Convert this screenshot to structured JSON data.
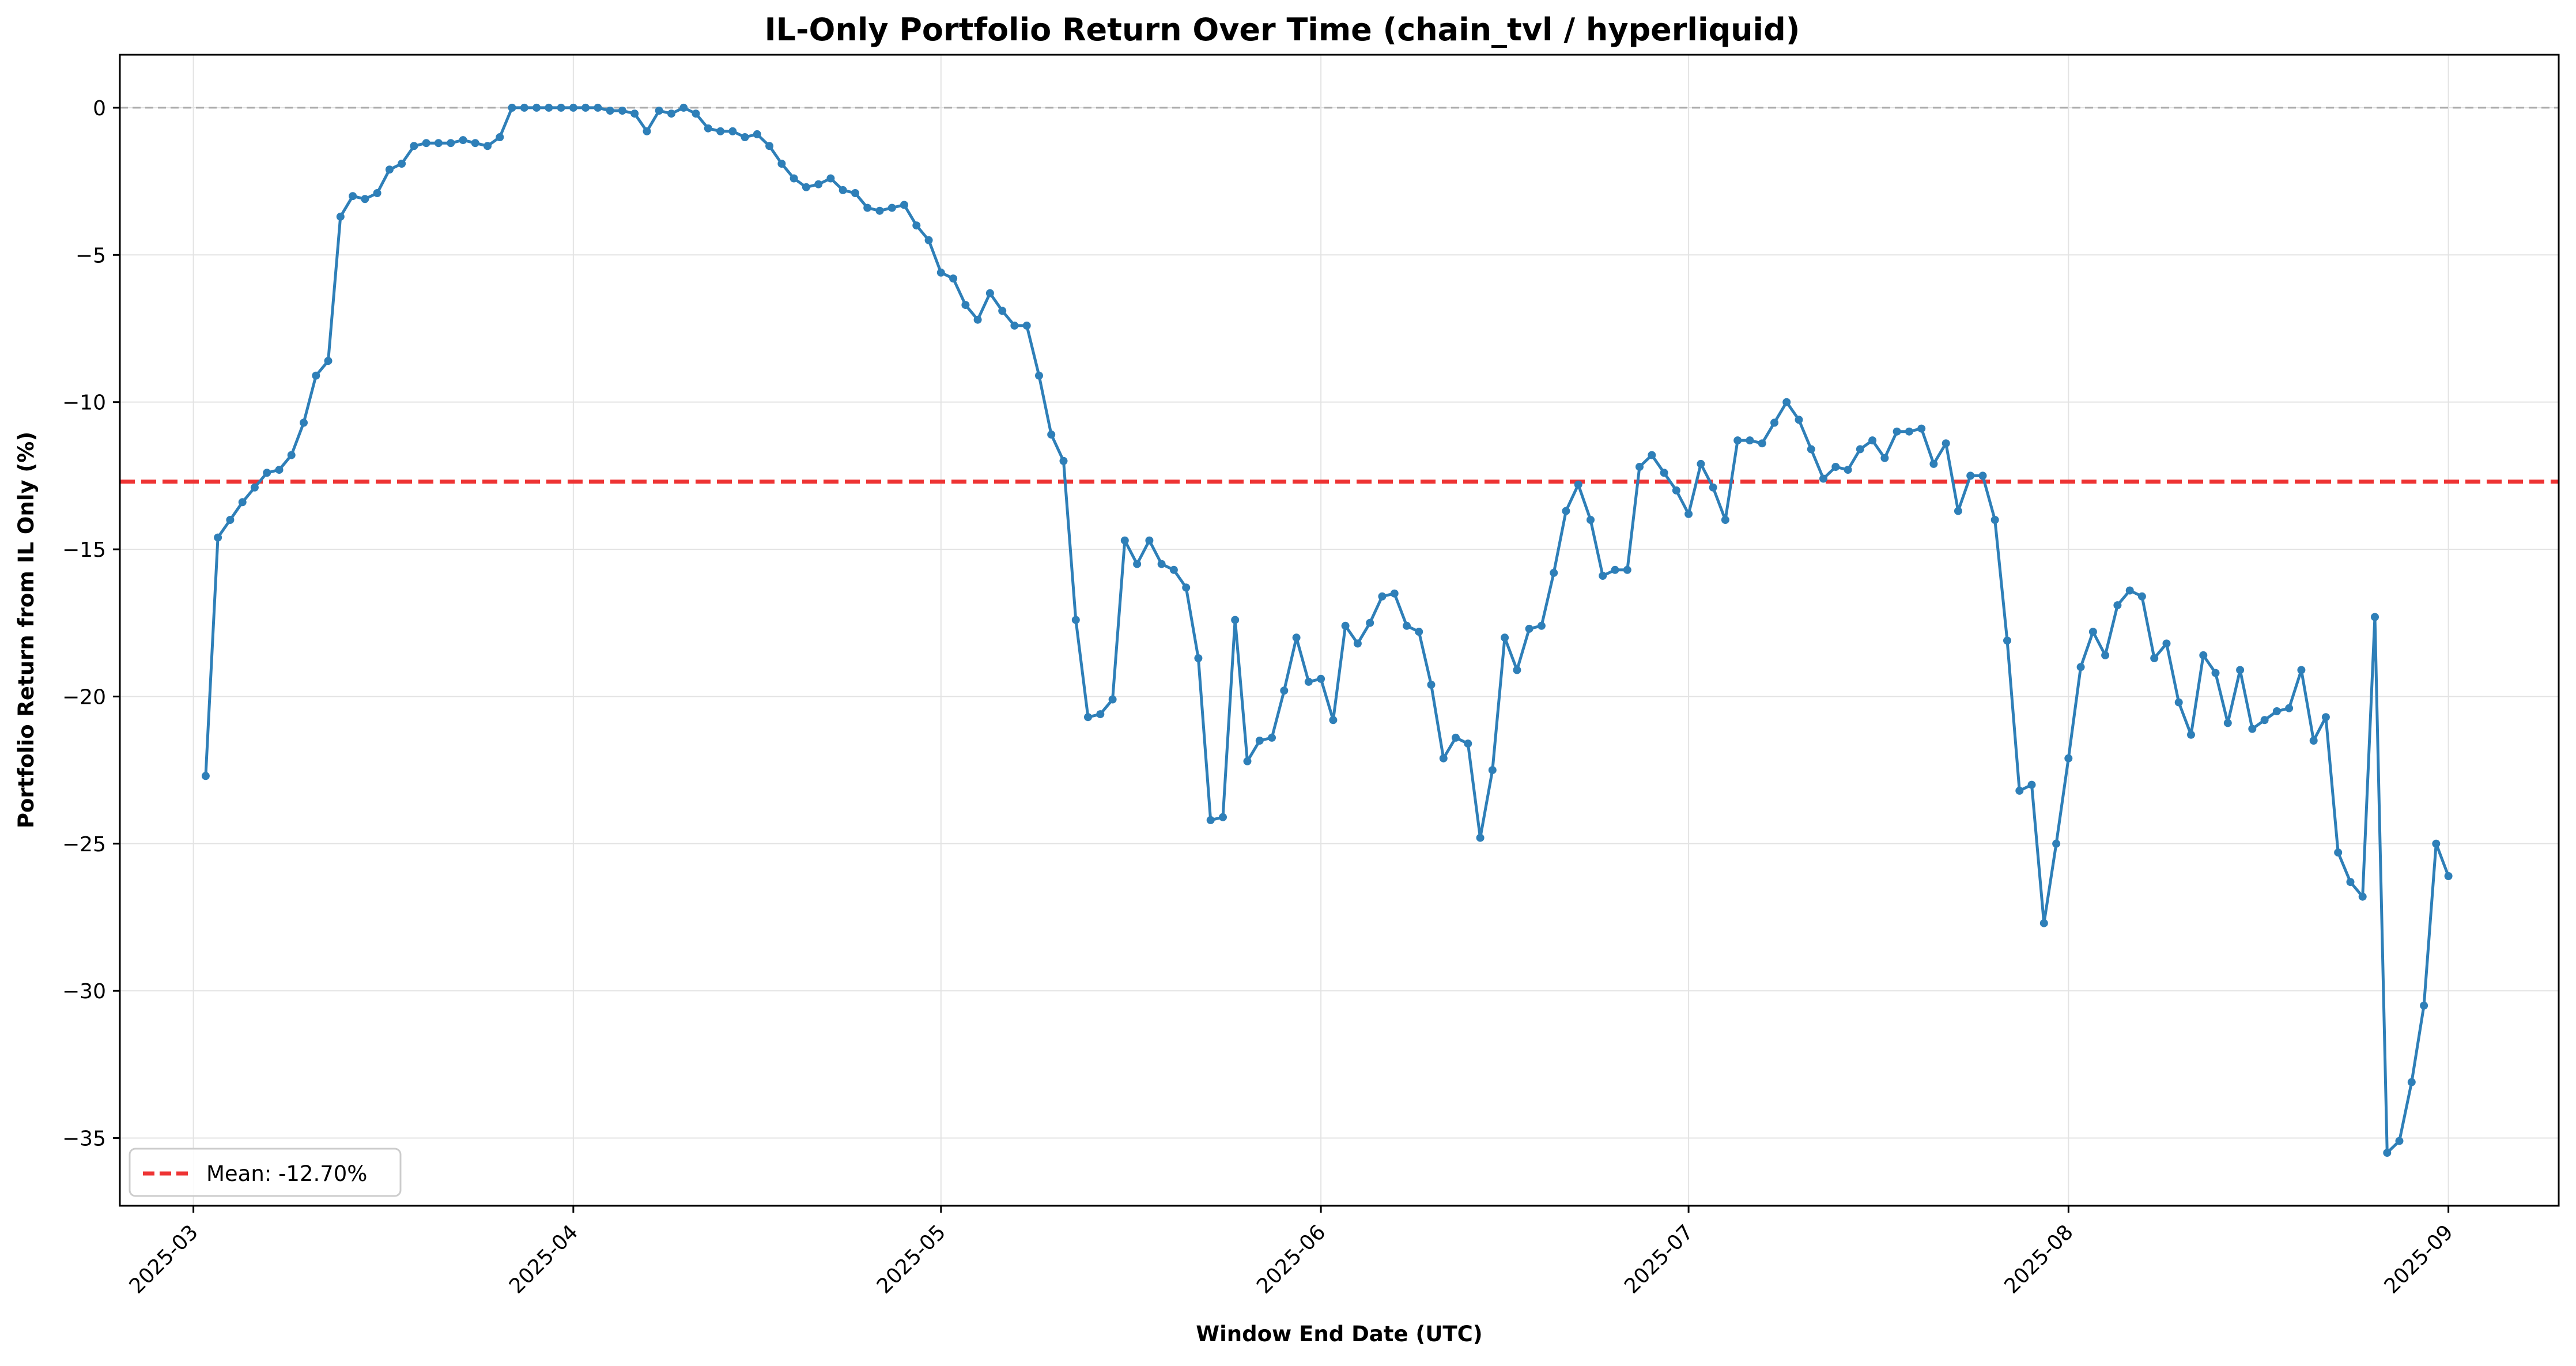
{
  "chart_data": {
    "type": "line",
    "title": "IL-Only Portfolio Return Over Time (chain_tvl / hyperliquid)",
    "xlabel": "Window End Date (UTC)",
    "ylabel": "Portfolio Return from IL Only (%)",
    "x_tick_labels": [
      "2025-03",
      "2025-04",
      "2025-05",
      "2025-06",
      "2025-07",
      "2025-08",
      "2025-09"
    ],
    "y_ticks": [
      0,
      -5,
      -10,
      -15,
      -20,
      -25,
      -30,
      -35
    ],
    "y_tick_labels": [
      "0",
      "−5",
      "−10",
      "−15",
      "−20",
      "−25",
      "−30",
      "−35"
    ],
    "xlim": [
      "2025-02-23",
      "2025-09-10"
    ],
    "ylim": [
      -37.3,
      1.8
    ],
    "grid": true,
    "legend": "lower-left",
    "zero_line": {
      "y": 0,
      "style": "dashed",
      "color": "#aaaaaa"
    },
    "series": [
      {
        "name": "Portfolio Return",
        "color": "#2e7fb8",
        "style": "solid",
        "marker": "o",
        "x": [
          "2025-03-02",
          "2025-03-03",
          "2025-03-04",
          "2025-03-05",
          "2025-03-06",
          "2025-03-07",
          "2025-03-08",
          "2025-03-09",
          "2025-03-10",
          "2025-03-11",
          "2025-03-12",
          "2025-03-13",
          "2025-03-14",
          "2025-03-15",
          "2025-03-16",
          "2025-03-17",
          "2025-03-18",
          "2025-03-19",
          "2025-03-20",
          "2025-03-21",
          "2025-03-22",
          "2025-03-23",
          "2025-03-24",
          "2025-03-25",
          "2025-03-26",
          "2025-03-27",
          "2025-03-28",
          "2025-03-29",
          "2025-03-30",
          "2025-03-31",
          "2025-04-01",
          "2025-04-02",
          "2025-04-03",
          "2025-04-04",
          "2025-04-05",
          "2025-04-06",
          "2025-04-07",
          "2025-04-08",
          "2025-04-09",
          "2025-04-10",
          "2025-04-11",
          "2025-04-12",
          "2025-04-13",
          "2025-04-14",
          "2025-04-15",
          "2025-04-16",
          "2025-04-17",
          "2025-04-18",
          "2025-04-19",
          "2025-04-20",
          "2025-04-21",
          "2025-04-22",
          "2025-04-23",
          "2025-04-24",
          "2025-04-25",
          "2025-04-26",
          "2025-04-27",
          "2025-04-28",
          "2025-04-29",
          "2025-04-30",
          "2025-05-01",
          "2025-05-02",
          "2025-05-03",
          "2025-05-04",
          "2025-05-05",
          "2025-05-06",
          "2025-05-07",
          "2025-05-08",
          "2025-05-09",
          "2025-05-10",
          "2025-05-11",
          "2025-05-12",
          "2025-05-13",
          "2025-05-14",
          "2025-05-15",
          "2025-05-16",
          "2025-05-17",
          "2025-05-18",
          "2025-05-19",
          "2025-05-20",
          "2025-05-21",
          "2025-05-22",
          "2025-05-23",
          "2025-05-24",
          "2025-05-25",
          "2025-05-26",
          "2025-05-27",
          "2025-05-28",
          "2025-05-29",
          "2025-05-30",
          "2025-05-31",
          "2025-06-01",
          "2025-06-02",
          "2025-06-03",
          "2025-06-04",
          "2025-06-05",
          "2025-06-06",
          "2025-06-07",
          "2025-06-08",
          "2025-06-09",
          "2025-06-10",
          "2025-06-11",
          "2025-06-12",
          "2025-06-13",
          "2025-06-14",
          "2025-06-15",
          "2025-06-16",
          "2025-06-17",
          "2025-06-18",
          "2025-06-19",
          "2025-06-20",
          "2025-06-21",
          "2025-06-22",
          "2025-06-23",
          "2025-06-24",
          "2025-06-25",
          "2025-06-26",
          "2025-06-27",
          "2025-06-28",
          "2025-06-29",
          "2025-06-30",
          "2025-07-01",
          "2025-07-02",
          "2025-07-03",
          "2025-07-04",
          "2025-07-05",
          "2025-07-06",
          "2025-07-07",
          "2025-07-08",
          "2025-07-09",
          "2025-07-10",
          "2025-07-11",
          "2025-07-12",
          "2025-07-13",
          "2025-07-14",
          "2025-07-15",
          "2025-07-16",
          "2025-07-17",
          "2025-07-18",
          "2025-07-19",
          "2025-07-20",
          "2025-07-21",
          "2025-07-22",
          "2025-07-23",
          "2025-07-24",
          "2025-07-25",
          "2025-07-26",
          "2025-07-27",
          "2025-07-28",
          "2025-07-29",
          "2025-07-30",
          "2025-07-31",
          "2025-08-01",
          "2025-08-02",
          "2025-08-03",
          "2025-08-04",
          "2025-08-05",
          "2025-08-06",
          "2025-08-07",
          "2025-08-08",
          "2025-08-09",
          "2025-08-10",
          "2025-08-11",
          "2025-08-12",
          "2025-08-13",
          "2025-08-14",
          "2025-08-15",
          "2025-08-16",
          "2025-08-17",
          "2025-08-18",
          "2025-08-19",
          "2025-08-20",
          "2025-08-21",
          "2025-08-22",
          "2025-08-23",
          "2025-08-24",
          "2025-08-25",
          "2025-08-26",
          "2025-08-27",
          "2025-08-28",
          "2025-08-29",
          "2025-08-30",
          "2025-08-31",
          "2025-09-01"
        ],
        "y": [
          -22.7,
          -14.6,
          -14.0,
          -13.4,
          -12.9,
          -12.4,
          -12.3,
          -11.8,
          -10.7,
          -9.1,
          -8.6,
          -3.7,
          -3.0,
          -3.1,
          -2.9,
          -2.1,
          -1.9,
          -1.3,
          -1.2,
          -1.2,
          -1.2,
          -1.1,
          -1.2,
          -1.3,
          -1.0,
          0.0,
          0.0,
          0.0,
          0.0,
          0.0,
          0.0,
          0.0,
          0.0,
          -0.1,
          -0.1,
          -0.2,
          -0.8,
          -0.1,
          -0.2,
          0.0,
          -0.2,
          -0.7,
          -0.8,
          -0.8,
          -1.0,
          -0.9,
          -1.3,
          -1.9,
          -2.4,
          -2.7,
          -2.6,
          -2.4,
          -2.8,
          -2.9,
          -3.4,
          -3.5,
          -3.4,
          -3.3,
          -4.0,
          -4.5,
          -5.6,
          -5.8,
          -6.7,
          -7.2,
          -6.3,
          -6.9,
          -7.4,
          -7.4,
          -9.1,
          -11.1,
          -12.0,
          -17.4,
          -20.7,
          -20.6,
          -20.1,
          -14.7,
          -15.5,
          -14.7,
          -15.5,
          -15.7,
          -16.3,
          -18.7,
          -24.2,
          -24.1,
          -17.4,
          -22.2,
          -21.5,
          -21.4,
          -19.8,
          -18.0,
          -19.5,
          -19.4,
          -20.8,
          -17.6,
          -18.2,
          -17.5,
          -16.6,
          -16.5,
          -17.6,
          -17.8,
          -19.6,
          -22.1,
          -21.4,
          -21.6,
          -24.8,
          -22.5,
          -18.0,
          -19.1,
          -17.7,
          -17.6,
          -15.8,
          -13.7,
          -12.8,
          -14.0,
          -15.9,
          -15.7,
          -15.7,
          -12.2,
          -11.8,
          -12.4,
          -13.0,
          -13.8,
          -12.1,
          -12.9,
          -14.0,
          -11.3,
          -11.3,
          -11.4,
          -10.7,
          -10.0,
          -10.6,
          -11.6,
          -12.6,
          -12.2,
          -12.3,
          -11.6,
          -11.3,
          -11.9,
          -11.0,
          -11.0,
          -10.9,
          -12.1,
          -11.4,
          -13.7,
          -12.5,
          -12.5,
          -14.0,
          -18.1,
          -23.2,
          -23.0,
          -27.7,
          -25.0,
          -22.1,
          -19.0,
          -17.8,
          -18.6,
          -16.9,
          -16.4,
          -16.6,
          -18.7,
          -18.2,
          -20.2,
          -21.3,
          -18.6,
          -19.2,
          -20.9,
          -19.1,
          -21.1,
          -20.8,
          -20.5,
          -20.4,
          -19.1,
          -21.5,
          -20.7,
          -25.3,
          -26.3,
          -26.8,
          -17.3,
          -35.5,
          -35.1,
          -33.1,
          -30.5,
          -25.0,
          -26.1
        ]
      },
      {
        "name": "Mean: -12.70%",
        "color": "#ee3333",
        "style": "dashed",
        "y_const": -12.7
      }
    ]
  }
}
